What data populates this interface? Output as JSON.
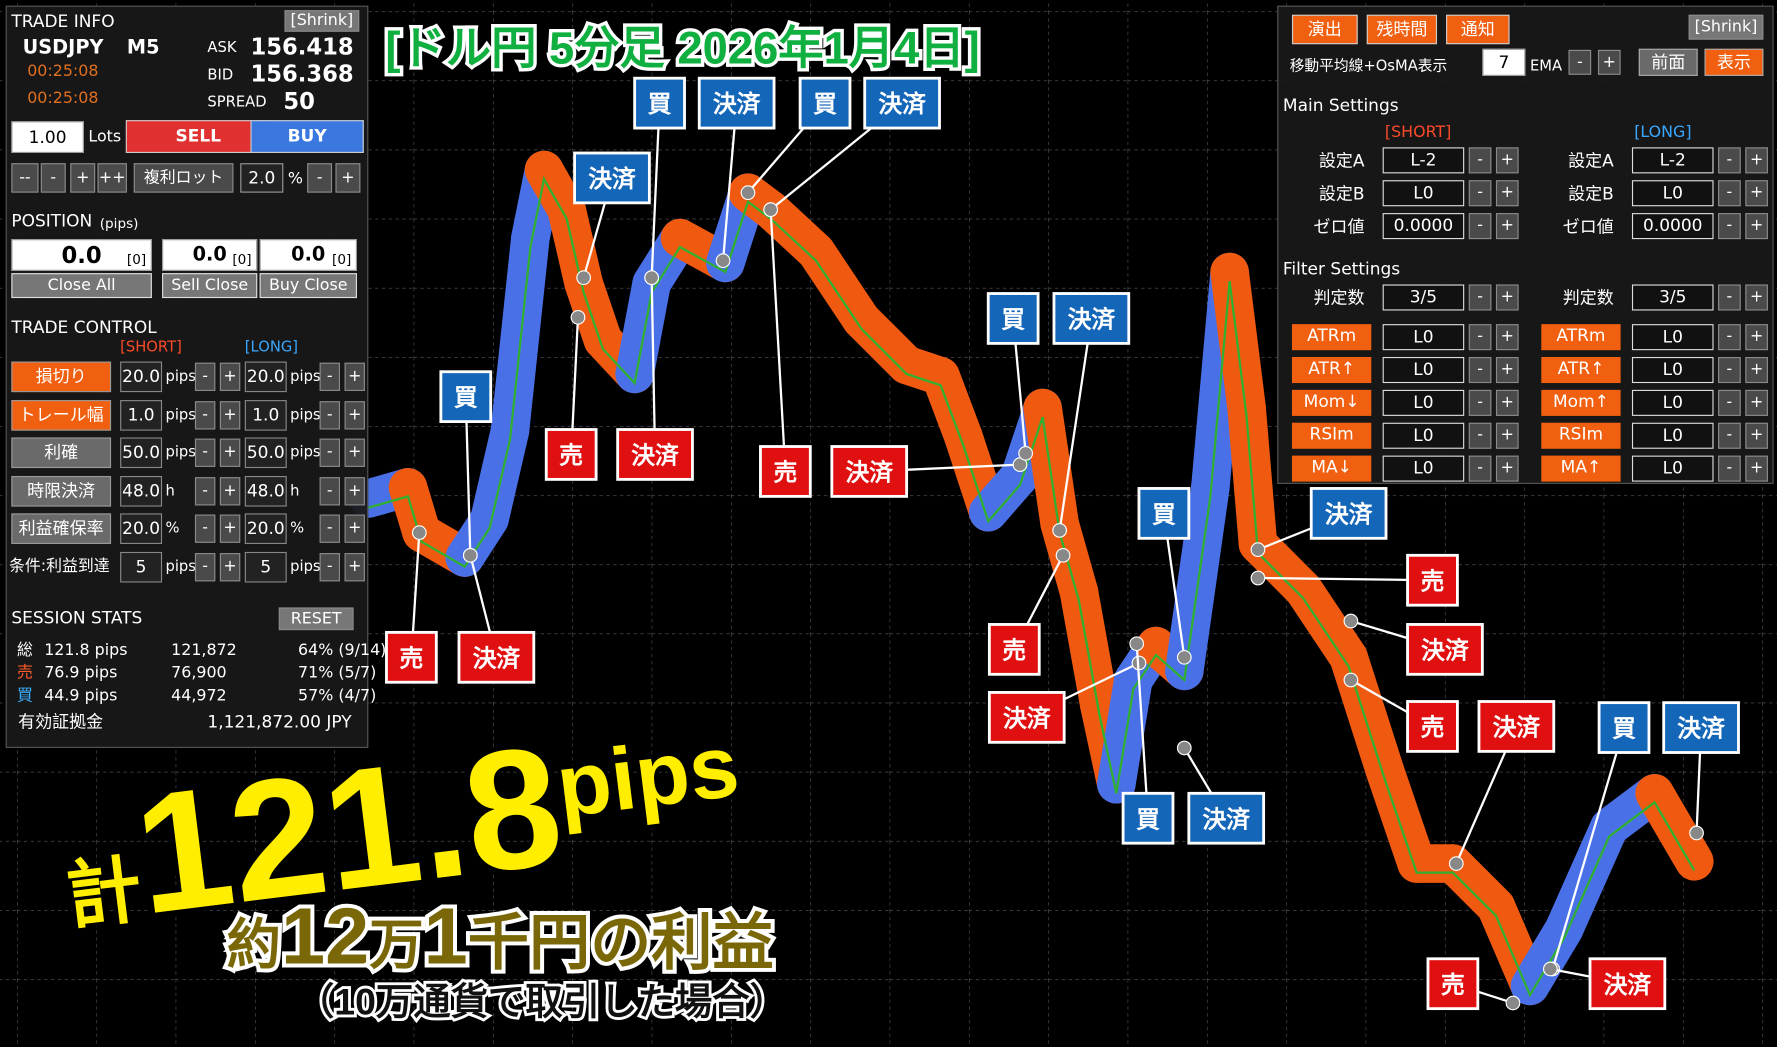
{
  "title": "[ドル円 5分足  2026年1月4日]",
  "trade_info": {
    "header": "TRADE INFO",
    "shrink": "[Shrink]",
    "symbol": "USDJPY",
    "timeframe": "M5",
    "times": [
      "00:25:08",
      "00:25:08"
    ],
    "ask_label": "ASK",
    "ask": "156.418",
    "bid_label": "BID",
    "bid": "156.368",
    "spread_label": "SPREAD",
    "spread": "50",
    "lots": "1.00",
    "lots_label": "Lots",
    "sell": "SELL",
    "buy": "BUY",
    "lot_buttons": [
      "--",
      "-",
      "+",
      "++"
    ],
    "compound": "複利ロット",
    "compound_value": "2.0",
    "percent": "%"
  },
  "buttons": {
    "minus": "-",
    "plus": "+"
  },
  "position": {
    "label": "POSITION",
    "unit": "(pips)",
    "values": [
      "0.0",
      "0.0",
      "0.0"
    ],
    "counts": [
      "[0]",
      "[0]",
      "[0]"
    ],
    "close_all": "Close All",
    "sell_close": "Sell Close",
    "buy_close": "Buy Close"
  },
  "trade_control": {
    "label": "TRADE CONTROL",
    "short": "[SHORT]",
    "long": "[LONG]",
    "rows": [
      {
        "name": "損切り",
        "style": "orange",
        "short": "20.0",
        "long": "20.0",
        "unit": "pips"
      },
      {
        "name": "トレール幅",
        "style": "orange",
        "short": "1.0",
        "long": "1.0",
        "unit": "pips"
      },
      {
        "name": "利確",
        "style": "gray",
        "short": "50.0",
        "long": "50.0",
        "unit": "pips"
      },
      {
        "name": "時限決済",
        "style": "gray",
        "short": "48.0",
        "long": "48.0",
        "unit": "h"
      },
      {
        "name": "利益確保率",
        "style": "gray",
        "short": "20.0",
        "long": "20.0",
        "unit": "%"
      },
      {
        "name": "条件:利益到達",
        "style": "plain",
        "short": "5",
        "long": "5",
        "unit": "pips"
      }
    ]
  },
  "session_stats": {
    "label": "SESSION STATS",
    "reset": "RESET",
    "rows": [
      {
        "label": "総",
        "color": "#ffffff",
        "pips": "121.8 pips",
        "yen": "121,872",
        "rate": "64% (9/14)"
      },
      {
        "label": "売",
        "color": "#ff5a2a",
        "pips": "76.9 pips",
        "yen": "76,900",
        "rate": "71% (5/7)"
      },
      {
        "label": "買",
        "color": "#3ab0ff",
        "pips": "44.9 pips",
        "yen": "44,972",
        "rate": "57% (4/7)"
      }
    ],
    "equity_label": "有効証拠金",
    "equity": "1,121,872.00 JPY"
  },
  "settings_panel": {
    "top_buttons": [
      "演出",
      "残時間",
      "通知"
    ],
    "shrink": "[Shrink]",
    "ma_label": "移動平均線+OsMA表示",
    "ma_period": "7",
    "ma_type": "EMA",
    "front": "前面",
    "show": "表示",
    "main_settings": "Main Settings",
    "short": "[SHORT]",
    "long": "[LONG]",
    "main_rows": [
      {
        "name": "設定A",
        "value": "L-2"
      },
      {
        "name": "設定B",
        "value": "L0"
      },
      {
        "name": "ゼロ値",
        "value": "0.0000"
      }
    ],
    "filter_settings": "Filter Settings",
    "judge": {
      "name": "判定数",
      "value": "3/5"
    },
    "filter_rows": [
      {
        "short_name": "ATRm",
        "short": "L0",
        "long_name": "ATRm",
        "long": "L0"
      },
      {
        "short_name": "ATR↑",
        "short": "L0",
        "long_name": "ATR↑",
        "long": "L0"
      },
      {
        "short_name": "Mom↓",
        "short": "L0",
        "long_name": "Mom↑",
        "long": "L0"
      },
      {
        "short_name": "RSIm",
        "short": "L0",
        "long_name": "RSIm",
        "long": "L0"
      },
      {
        "short_name": "MA↓",
        "short": "L0",
        "long_name": "MA↑",
        "long": "L0"
      }
    ]
  },
  "annotations": [
    {
      "text": "決済",
      "side": "buy"
    },
    {
      "text": "買",
      "side": "buy"
    },
    {
      "text": "決済",
      "side": "buy"
    },
    {
      "text": "買",
      "side": "buy"
    },
    {
      "text": "決済",
      "side": "buy"
    },
    {
      "text": "買",
      "side": "buy"
    },
    {
      "text": "売",
      "side": "sell"
    },
    {
      "text": "決済",
      "side": "sell"
    },
    {
      "text": "売",
      "side": "sell"
    },
    {
      "text": "決済",
      "side": "sell"
    },
    {
      "text": "売",
      "side": "sell"
    },
    {
      "text": "決済",
      "side": "sell"
    },
    {
      "text": "買",
      "side": "buy"
    },
    {
      "text": "決済",
      "side": "buy"
    },
    {
      "text": "買",
      "side": "buy"
    },
    {
      "text": "決済",
      "side": "buy"
    },
    {
      "text": "売",
      "side": "sell"
    },
    {
      "text": "決済",
      "side": "sell"
    },
    {
      "text": "売",
      "side": "sell"
    },
    {
      "text": "決済",
      "side": "sell"
    },
    {
      "text": "売",
      "side": "sell"
    },
    {
      "text": "決済",
      "side": "sell"
    },
    {
      "text": "買",
      "side": "buy"
    },
    {
      "text": "決済",
      "side": "buy"
    },
    {
      "text": "買",
      "side": "buy"
    },
    {
      "text": "決済",
      "side": "buy"
    },
    {
      "text": "売",
      "side": "sell"
    },
    {
      "text": "決済",
      "side": "sell"
    }
  ],
  "overlay": {
    "total_prefix": "計",
    "total_value": "121.8",
    "total_unit": "pips",
    "profit_parts": [
      "約",
      "12",
      "万",
      "1",
      "千円の利益"
    ],
    "note": "（10万通貨で取引した場合）"
  }
}
